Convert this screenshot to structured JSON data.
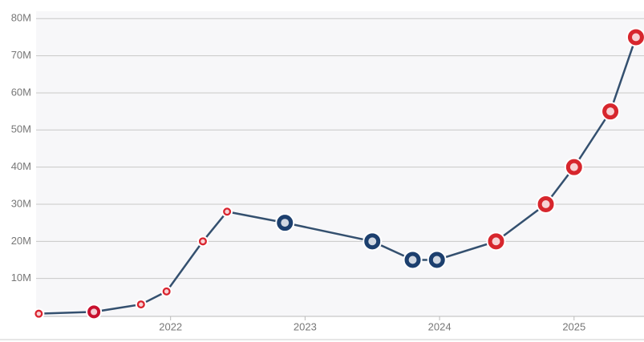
{
  "chart_data": {
    "type": "line",
    "x": [
      2021.02,
      2021.43,
      2021.78,
      2021.97,
      2022.24,
      2022.42,
      2022.85,
      2023.5,
      2023.8,
      2023.98,
      2024.42,
      2024.79,
      2025.0,
      2025.27,
      2025.46
    ],
    "series": [
      {
        "color": "#34506f",
        "values": [
          0.5,
          1,
          3,
          6.5,
          20,
          28,
          25,
          20,
          15,
          15,
          20,
          30,
          40,
          55,
          75
        ],
        "point_colors": [
          "#d9232e",
          "#c8102e",
          "#d9232e",
          "#d9232e",
          "#d9232e",
          "#d9232e",
          "#1c3f6e",
          "#1c3f6e",
          "#1c3f6e",
          "#1c3f6e",
          "#d7262d",
          "#d7262d",
          "#d7262d",
          "#d7262d",
          "#d7262d"
        ]
      }
    ],
    "xlim": [
      2021,
      2025.52
    ],
    "xticks": [
      2022,
      2023,
      2024,
      2025
    ],
    "ylim": [
      0,
      82
    ],
    "yticks": [
      {
        "value": 10,
        "label": "10M"
      },
      {
        "value": 20,
        "label": "20M"
      },
      {
        "value": 30,
        "label": "30M"
      },
      {
        "value": 40,
        "label": "40M"
      },
      {
        "value": 50,
        "label": "50M"
      },
      {
        "value": 60,
        "label": "60M"
      },
      {
        "value": 70,
        "label": "70M"
      },
      {
        "value": 80,
        "label": "80M"
      }
    ],
    "grid": true
  }
}
